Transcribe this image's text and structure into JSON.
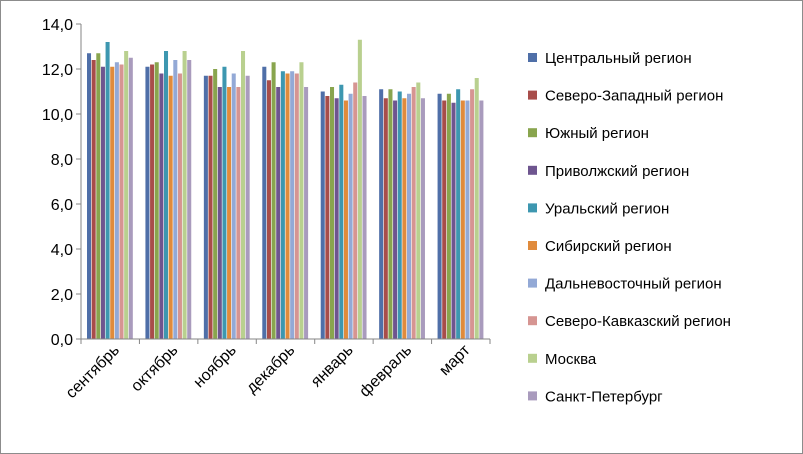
{
  "chart_data": {
    "type": "bar",
    "categories": [
      "сентябрь",
      "октябрь",
      "ноябрь",
      "декабрь",
      "январь",
      "февраль",
      "март"
    ],
    "ylim": [
      0,
      14
    ],
    "yticks": [
      "0,0",
      "2,0",
      "4,0",
      "6,0",
      "8,0",
      "10,0",
      "12,0",
      "14,0"
    ],
    "grid": false,
    "legend_position": "right",
    "series": [
      {
        "name": "Центральный регион",
        "color": "#4f6fa8",
        "values": [
          12.7,
          12.1,
          11.7,
          12.1,
          11.0,
          11.1,
          10.9
        ]
      },
      {
        "name": "Северо-Западный регион",
        "color": "#a84d4a",
        "values": [
          12.4,
          12.2,
          11.7,
          11.5,
          10.8,
          10.7,
          10.6
        ]
      },
      {
        "name": "Южный регион",
        "color": "#89a54e",
        "values": [
          12.7,
          12.3,
          12.0,
          12.3,
          11.2,
          11.1,
          10.9
        ]
      },
      {
        "name": "Приволжский регион",
        "color": "#6e558f",
        "values": [
          12.1,
          11.8,
          11.2,
          11.2,
          10.7,
          10.6,
          10.5
        ]
      },
      {
        "name": "Уральский регион",
        "color": "#3d97b0",
        "values": [
          13.2,
          12.8,
          12.1,
          11.9,
          11.3,
          11.0,
          11.1
        ]
      },
      {
        "name": "Сибирский регион",
        "color": "#e08b3c",
        "values": [
          12.1,
          11.7,
          11.2,
          11.8,
          10.6,
          10.7,
          10.6
        ]
      },
      {
        "name": "Дальневосточный регион",
        "color": "#93a9d6",
        "values": [
          12.3,
          12.4,
          11.8,
          11.9,
          10.9,
          10.9,
          10.6
        ]
      },
      {
        "name": "Северо-Кавказский регион",
        "color": "#d69592",
        "values": [
          12.2,
          11.8,
          11.2,
          11.8,
          11.4,
          11.2,
          11.1
        ]
      },
      {
        "name": "Москва",
        "color": "#b9d08f",
        "values": [
          12.8,
          12.8,
          12.8,
          12.3,
          13.3,
          11.4,
          11.6
        ]
      },
      {
        "name": "Санкт-Петербург",
        "color": "#a99bbd",
        "values": [
          12.5,
          12.4,
          11.7,
          11.2,
          10.8,
          10.7,
          10.6
        ]
      }
    ]
  }
}
